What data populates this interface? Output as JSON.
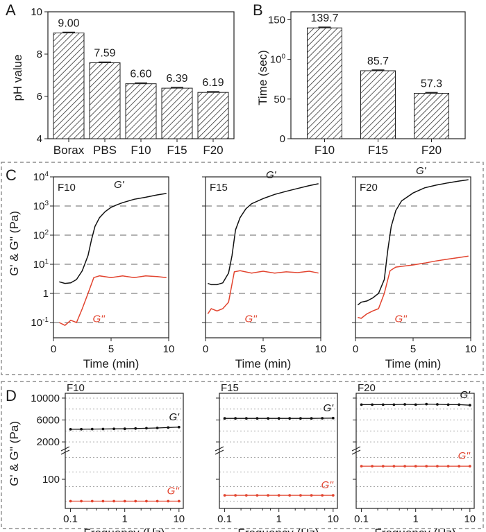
{
  "colors": {
    "gprime": "#111111",
    "gdouble": "#e2442f",
    "bar_fill": "#cccccc",
    "dashed_border": "#777777"
  },
  "panel_letters": {
    "A": "A",
    "B": "B",
    "C": "C",
    "D": "D"
  },
  "chart_data": [
    {
      "panel": "A",
      "type": "bar",
      "ylabel": "pH value",
      "categories": [
        "Borax",
        "PBS",
        "F10",
        "F15",
        "F20"
      ],
      "values": [
        9.0,
        7.59,
        6.6,
        6.39,
        6.19
      ],
      "value_labels": [
        "9.00",
        "7.59",
        "6.60",
        "6.39",
        "6.19"
      ],
      "ylim": [
        4,
        10
      ],
      "yticks": [
        "4",
        "6",
        "8",
        "10"
      ],
      "pattern": "diagonal-hatch"
    },
    {
      "panel": "B",
      "type": "bar",
      "ylabel": "Time (sec)",
      "categories": [
        "F10",
        "F15",
        "F20"
      ],
      "values": [
        139.7,
        85.7,
        57.3
      ],
      "value_labels": [
        "139.7",
        "85.7",
        "57.3"
      ],
      "ylim": [
        0,
        160
      ],
      "yticks": [
        "0",
        "50",
        "100",
        "150"
      ],
      "pattern": "diagonal-hatch"
    },
    {
      "panel": "C",
      "type": "line",
      "ylabel": "G' & G'' (Pa)",
      "xlabel": "Time (min)",
      "y_scale": "log",
      "ylim": [
        0.03,
        10000
      ],
      "xlim": [
        0,
        10
      ],
      "xticks": [
        "0",
        "5",
        "10"
      ],
      "ytick_labels": [
        "10-1",
        "1",
        "101",
        "102",
        "103",
        "104"
      ],
      "subplots": [
        {
          "name": "F10",
          "series": [
            {
              "name": "G'",
              "x": [
                0.5,
                1,
                1.5,
                2,
                2.5,
                3,
                3.3,
                3.6,
                4,
                4.5,
                5,
                5.5,
                6,
                7,
                8,
                9,
                9.8
              ],
              "y": [
                2.5,
                2.2,
                2.3,
                3,
                6,
                20,
                70,
                200,
                400,
                650,
                900,
                1100,
                1300,
                1700,
                2000,
                2400,
                2700
              ]
            },
            {
              "name": "G''",
              "x": [
                0.5,
                1,
                1.5,
                2,
                2.5,
                3,
                3.5,
                4,
                5,
                6,
                7,
                8,
                9,
                9.8
              ],
              "y": [
                0.1,
                0.08,
                0.12,
                0.1,
                0.3,
                1.0,
                3.5,
                4.0,
                3.5,
                4.0,
                3.5,
                4.0,
                3.8,
                3.5
              ]
            }
          ]
        },
        {
          "name": "F15",
          "series": [
            {
              "name": "G'",
              "x": [
                0.2,
                0.5,
                1,
                1.5,
                2,
                2.3,
                2.6,
                3,
                3.5,
                4,
                5,
                6,
                7,
                8,
                9,
                9.8
              ],
              "y": [
                2.2,
                2.0,
                2.0,
                2.3,
                5,
                20,
                150,
                400,
                800,
                1200,
                1800,
                2500,
                3200,
                4000,
                5000,
                5800
              ]
            },
            {
              "name": "G''",
              "x": [
                0.2,
                0.5,
                1,
                1.5,
                2,
                2.5,
                3,
                4,
                5,
                6,
                7,
                8,
                9,
                9.8
              ],
              "y": [
                0.2,
                0.3,
                0.25,
                0.3,
                0.5,
                5.5,
                6.0,
                5.0,
                5.8,
                5.0,
                5.5,
                5.2,
                5.8,
                5.0
              ]
            }
          ]
        },
        {
          "name": "F20",
          "series": [
            {
              "name": "G'",
              "x": [
                0.2,
                0.5,
                1,
                1.5,
                2,
                2.5,
                2.8,
                3.1,
                3.5,
                4,
                5,
                6,
                7,
                8,
                9,
                9.8
              ],
              "y": [
                0.4,
                0.5,
                0.55,
                0.7,
                1.0,
                3,
                30,
                200,
                700,
                1500,
                2800,
                4200,
                5200,
                6200,
                7200,
                8000
              ]
            },
            {
              "name": "G''",
              "x": [
                0.2,
                0.5,
                1,
                1.5,
                2,
                2.5,
                3,
                3.5,
                4,
                5,
                6,
                7,
                8,
                9,
                9.8
              ],
              "y": [
                0.15,
                0.14,
                0.2,
                0.25,
                0.3,
                1.0,
                6.0,
                8.0,
                8.5,
                9.5,
                11,
                13,
                15,
                17,
                19
              ]
            }
          ]
        }
      ]
    },
    {
      "panel": "D",
      "type": "line",
      "ylabel": "G' & G'' (Pa)",
      "xlabel": "Frequency (Hz)",
      "x_scale": "log",
      "xlim": [
        0.08,
        12
      ],
      "xticks": [
        "0.1",
        "1",
        "10"
      ],
      "broken_y_axis": true,
      "upper_yticks": [
        "2000",
        "6000",
        "10000"
      ],
      "lower_yticks": [
        "100"
      ],
      "subplots": [
        {
          "name": "F10",
          "series": [
            {
              "name": "G'",
              "x": [
                0.1,
                0.158,
                0.251,
                0.398,
                0.631,
                1,
                1.58,
                2.51,
                3.98,
                6.31,
                10
              ],
              "y": [
                4300,
                4320,
                4340,
                4360,
                4380,
                4400,
                4450,
                4500,
                4550,
                4620,
                4700
              ]
            },
            {
              "name": "G''",
              "x": [
                0.1,
                0.158,
                0.251,
                0.398,
                0.631,
                1,
                1.58,
                2.51,
                3.98,
                6.31,
                10
              ],
              "y": [
                25,
                25,
                25,
                25,
                25,
                25,
                25,
                25,
                25,
                25,
                25
              ]
            }
          ]
        },
        {
          "name": "F15",
          "series": [
            {
              "name": "G'",
              "x": [
                0.1,
                0.158,
                0.251,
                0.398,
                0.631,
                1,
                1.58,
                2.51,
                3.98,
                6.31,
                10
              ],
              "y": [
                6300,
                6300,
                6300,
                6300,
                6300,
                6300,
                6300,
                6300,
                6300,
                6320,
                6350
              ]
            },
            {
              "name": "G''",
              "x": [
                0.1,
                0.158,
                0.251,
                0.398,
                0.631,
                1,
                1.58,
                2.51,
                3.98,
                6.31,
                10
              ],
              "y": [
                45,
                45,
                45,
                45,
                45,
                45,
                45,
                45,
                45,
                45,
                45
              ]
            }
          ]
        },
        {
          "name": "F20",
          "series": [
            {
              "name": "G'",
              "x": [
                0.1,
                0.158,
                0.251,
                0.398,
                0.631,
                1,
                1.58,
                2.51,
                3.98,
                6.31,
                10
              ],
              "y": [
                8800,
                8800,
                8800,
                8800,
                8850,
                8800,
                8900,
                8850,
                8800,
                8800,
                8700
              ]
            },
            {
              "name": "G''",
              "x": [
                0.1,
                0.158,
                0.251,
                0.398,
                0.631,
                1,
                1.58,
                2.51,
                3.98,
                6.31,
                10
              ],
              "y": [
                145,
                145,
                145,
                145,
                145,
                145,
                145,
                145,
                145,
                145,
                145
              ]
            }
          ]
        }
      ]
    }
  ]
}
